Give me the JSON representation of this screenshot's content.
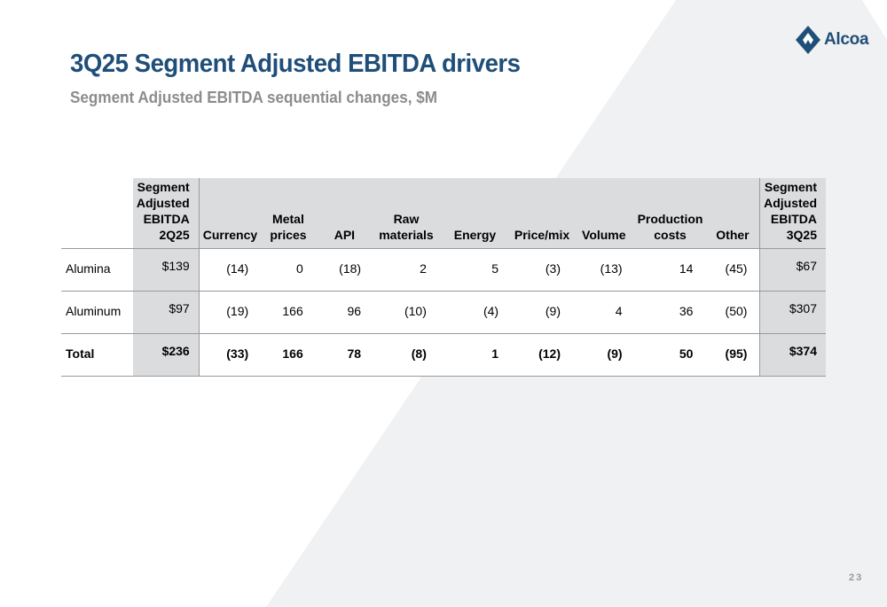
{
  "brand": {
    "name": "Alcoa",
    "logo_icon": "alcoa-diamond-logo",
    "color": "#1f4e79"
  },
  "title": "3Q25 Segment Adjusted EBITDA drivers",
  "subtitle": "Segment Adjusted EBITDA sequential changes, $M",
  "table": {
    "headers": {
      "start": [
        "Segment",
        "Adjusted",
        "EBITDA",
        "2Q25"
      ],
      "currency": [
        "Currency"
      ],
      "metal": [
        "Metal",
        "prices"
      ],
      "api": [
        "API"
      ],
      "raw": [
        "Raw",
        "materials"
      ],
      "energy": [
        "Energy"
      ],
      "price_mix": [
        "Price/mix"
      ],
      "volume": [
        "Volume"
      ],
      "production": [
        "Production",
        "costs"
      ],
      "other": [
        "Other"
      ],
      "end": [
        "Segment",
        "Adjusted",
        "EBITDA",
        "3Q25"
      ]
    },
    "rows": [
      {
        "label": "Alumina",
        "start": "$139",
        "currency": "(14)",
        "metal": "0",
        "api": "(18)",
        "raw": "2",
        "energy": "5",
        "price_mix": "(3)",
        "volume": "(13)",
        "production": "14",
        "other": "(45)",
        "end": "$67"
      },
      {
        "label": "Aluminum",
        "start": "$97",
        "currency": "(19)",
        "metal": "166",
        "api": "96",
        "raw": "(10)",
        "energy": "(4)",
        "price_mix": "(9)",
        "volume": "4",
        "production": "36",
        "other": "(50)",
        "end": "$307"
      },
      {
        "label": "Total",
        "start": "$236",
        "currency": "(33)",
        "metal": "166",
        "api": "78",
        "raw": "(8)",
        "energy": "1",
        "price_mix": "(12)",
        "volume": "(9)",
        "production": "50",
        "other": "(95)",
        "end": "$374"
      }
    ]
  },
  "page_number": "23",
  "colors": {
    "header_fill": "#dadcde",
    "background_shape": "#f0f1f2",
    "subtitle": "#8c8c8c"
  }
}
